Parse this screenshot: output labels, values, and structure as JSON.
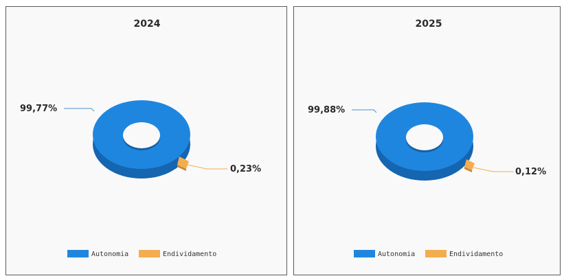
{
  "colors": {
    "autonomia": "#1f86e0",
    "autonomia_dark": "#1565b0",
    "endividamento": "#f4ad4e",
    "endividamento_dark": "#c98530"
  },
  "chart_data": [
    {
      "type": "pie",
      "variant": "donut-3d",
      "title": "2024",
      "slices": [
        {
          "name": "Autonomia",
          "value": 99.77,
          "label": "99,77%"
        },
        {
          "name": "Endividamento",
          "value": 0.23,
          "label": "0,23%"
        }
      ],
      "legend": [
        "Autonomia",
        "Endividamento"
      ],
      "legend_position": "bottom"
    },
    {
      "type": "pie",
      "variant": "donut-3d",
      "title": "2025",
      "slices": [
        {
          "name": "Autonomia",
          "value": 99.88,
          "label": "99,88%"
        },
        {
          "name": "Endividamento",
          "value": 0.12,
          "label": "0,12%"
        }
      ],
      "legend": [
        "Autonomia",
        "Endividamento"
      ],
      "legend_position": "bottom"
    }
  ]
}
